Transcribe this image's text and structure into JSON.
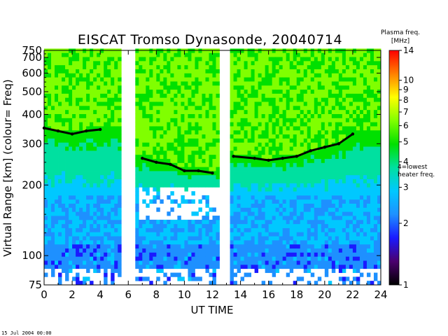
{
  "chart_data": {
    "type": "heatmap",
    "title": "EISCAT Tromso Dynasonde,  20040714",
    "xlabel": "UT TIME",
    "ylabel": "Virtual Range [km]   (colour= Freq)",
    "xlim": [
      0,
      24
    ],
    "x_ticks": [
      "0",
      "2",
      "4",
      "6",
      "8",
      "10",
      "12",
      "14",
      "16",
      "18",
      "20",
      "22",
      "24"
    ],
    "ylim": [
      75,
      750
    ],
    "y_scale": "log",
    "y_ticks": [
      "75",
      "100",
      "200",
      "300",
      "400",
      "500",
      "600",
      "700",
      "750"
    ],
    "colorbar": {
      "label": "Plasma freq. [MHz]",
      "range": [
        1,
        14
      ],
      "scale": "log",
      "ticks": [
        "1",
        "2",
        "3",
        "4",
        "5",
        "6",
        "7",
        "8",
        "9",
        "10",
        "14"
      ],
      "annotation": "4=lowest heater freq.",
      "colors": [
        "#000000",
        "#4b006e",
        "#1a1aff",
        "#1e90ff",
        "#00c8ff",
        "#00e0a0",
        "#00e000",
        "#80ff00",
        "#ffff00",
        "#ff8000",
        "#ff0000"
      ]
    },
    "data_gaps": [
      [
        5.6,
        6.4
      ],
      [
        12.6,
        13.2
      ]
    ],
    "f_layer_trace_km": [
      {
        "x": 0,
        "y": 350
      },
      {
        "x": 1,
        "y": 340
      },
      {
        "x": 2,
        "y": 330
      },
      {
        "x": 3,
        "y": 340
      },
      {
        "x": 4,
        "y": 345
      },
      {
        "x": 7,
        "y": 260
      },
      {
        "x": 8,
        "y": 250
      },
      {
        "x": 9,
        "y": 245
      },
      {
        "x": 10,
        "y": 230
      },
      {
        "x": 11,
        "y": 230
      },
      {
        "x": 12,
        "y": 225
      },
      {
        "x": 13.5,
        "y": 265
      },
      {
        "x": 15,
        "y": 260
      },
      {
        "x": 16,
        "y": 255
      },
      {
        "x": 17,
        "y": 260
      },
      {
        "x": 18,
        "y": 265
      },
      {
        "x": 19,
        "y": 280
      },
      {
        "x": 20,
        "y": 290
      },
      {
        "x": 21,
        "y": 300
      },
      {
        "x": 22,
        "y": 330
      }
    ]
  },
  "footer": {
    "timestamp": "15 Jul 2004 00:00"
  }
}
